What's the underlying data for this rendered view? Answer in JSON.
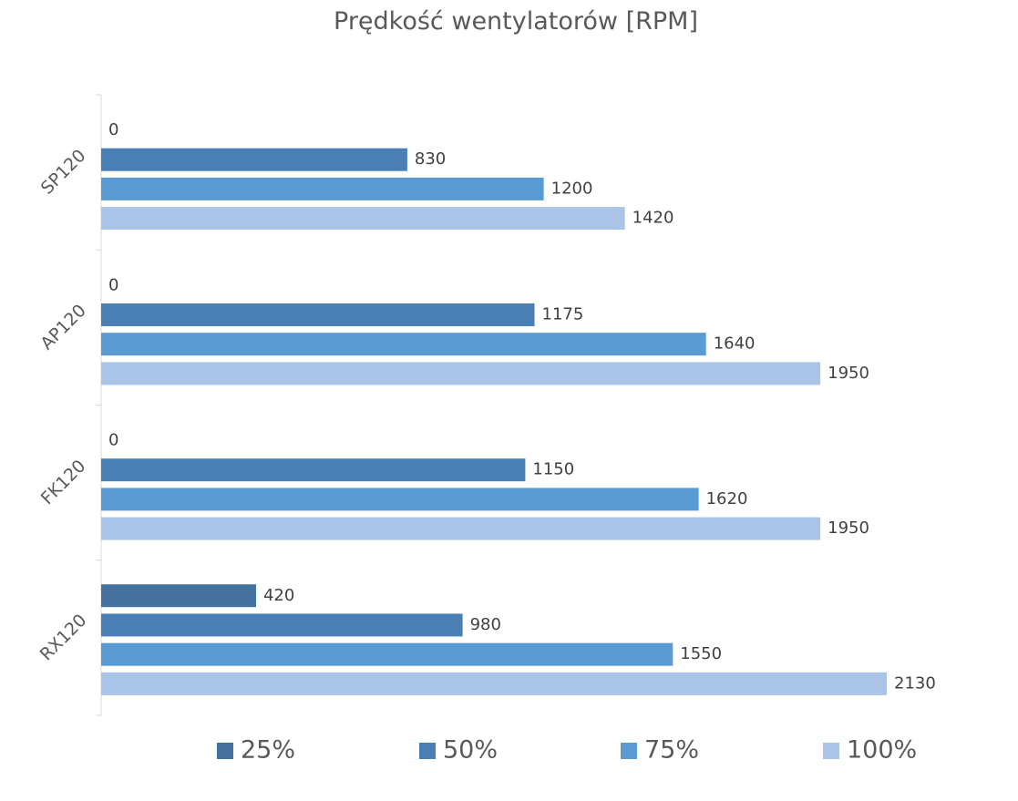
{
  "chart_data": {
    "type": "bar",
    "orientation": "horizontal",
    "title": "Prędkość wentylatorów [RPM]",
    "xlabel": "",
    "ylabel": "",
    "categories": [
      "SP120",
      "AP120",
      "FK120",
      "RX120"
    ],
    "series": [
      {
        "name": "25%",
        "color": "#44729f",
        "values": [
          0,
          0,
          0,
          420
        ]
      },
      {
        "name": "50%",
        "color": "#4a7fb5",
        "values": [
          830,
          1175,
          1150,
          980
        ]
      },
      {
        "name": "75%",
        "color": "#5b9bd5",
        "values": [
          1200,
          1640,
          1620,
          1550
        ]
      },
      {
        "name": "100%",
        "color": "#a9c4e6",
        "values": [
          1420,
          1950,
          1950,
          2130
        ]
      }
    ],
    "xlim": [
      0,
      2130
    ],
    "grid": false,
    "data_labels": true,
    "legend_position": "bottom"
  }
}
